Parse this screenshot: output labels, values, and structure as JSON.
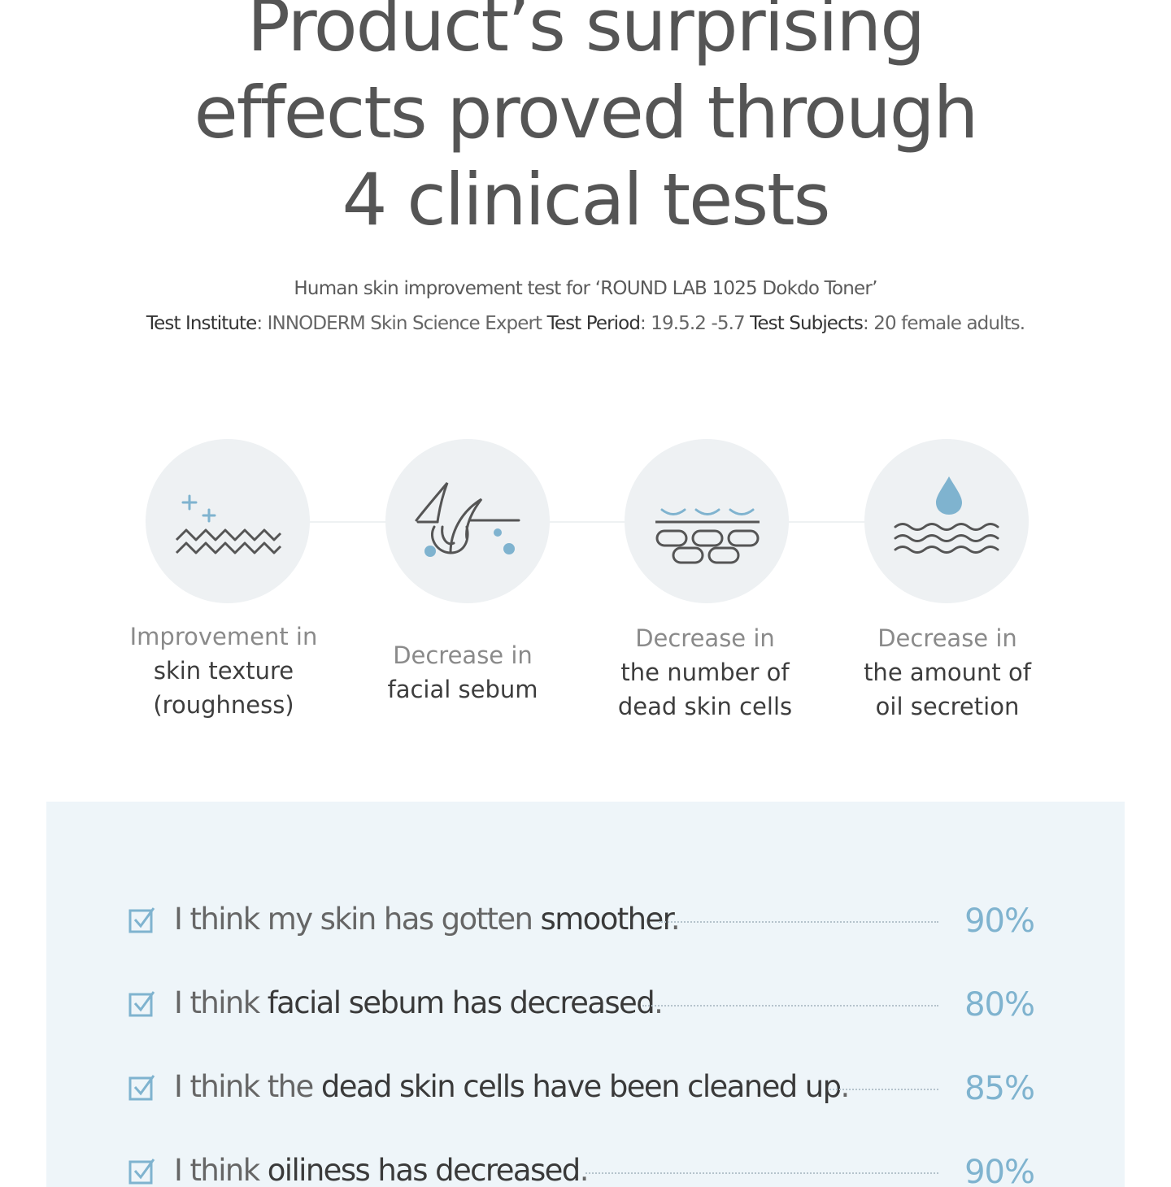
{
  "headline": {
    "line1": "Product’s surprising",
    "line2": "effects proved through",
    "line3": "4 clinical tests"
  },
  "test_info": {
    "subtitle": "Human skin improvement test for ‘ROUND LAB 1025 Dokdo Toner’",
    "institute_label": "Test Institute",
    "institute_value": ": INNODERM Skin Science Expert ",
    "period_label": "Test Period",
    "period_value": ": 19.5.2 -5.7 ",
    "subjects_label": "Test Subjects",
    "subjects_value": ": 20 female adults."
  },
  "effects": [
    {
      "icon": "skin-texture-icon",
      "line1": "Improvement in",
      "line2": "skin texture",
      "line3": "(roughness)"
    },
    {
      "icon": "sebum-follicle-icon",
      "line1": "Decrease in",
      "line2": "facial sebum"
    },
    {
      "icon": "dead-skin-cells-icon",
      "line1": "Decrease in",
      "line2": "the number of",
      "line3": "dead skin cells"
    },
    {
      "icon": "oil-drop-icon",
      "line1": "Decrease in",
      "line2": "the amount of",
      "line3": "oil secretion"
    }
  ],
  "survey": [
    {
      "prefix": "I think my skin has gotten ",
      "highlight": "smoother",
      "suffix": ".",
      "percent": "90%"
    },
    {
      "prefix": "I think ",
      "highlight": "facial sebum has decreased",
      "suffix": ".",
      "percent": "80%"
    },
    {
      "prefix": "I think the ",
      "highlight": "dead skin cells have been cleaned up",
      "suffix": ".",
      "percent": "85%"
    },
    {
      "prefix": "I think ",
      "highlight": "oiliness has decreased",
      "suffix": ".",
      "percent": "90%"
    }
  ],
  "colors": {
    "accent": "#7fb3cf",
    "circle_bg": "#eef1f3",
    "panel_bg": "#eef5f9",
    "icon_dark": "#555555"
  }
}
